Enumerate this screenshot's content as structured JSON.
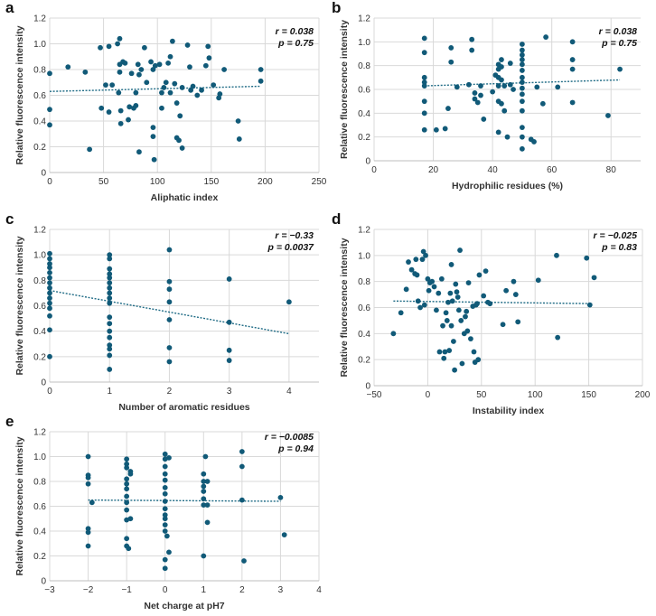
{
  "chart_data": [
    {
      "panel": "a",
      "type": "scatter",
      "xlabel": "Aliphatic index",
      "ylabel": "Relative fluorescence intensity",
      "xlim": [
        0,
        250
      ],
      "ylim": [
        0,
        1.2
      ],
      "xticks": [
        "0",
        "50",
        "100",
        "150",
        "200",
        "250"
      ],
      "yticks": [
        "0",
        "0.2",
        "0.4",
        "0.6",
        "0.8",
        "1.0",
        "1.2"
      ],
      "grid": true,
      "trend": {
        "x": [
          0,
          195
        ],
        "y": [
          0.63,
          0.67
        ]
      },
      "stats": {
        "r": "r = 0.038",
        "p": "p = 0.75"
      },
      "points": [
        [
          0,
          0.77
        ],
        [
          0,
          0.49
        ],
        [
          0,
          0.37
        ],
        [
          17,
          0.82
        ],
        [
          33,
          0.78
        ],
        [
          37,
          0.18
        ],
        [
          47,
          0.97
        ],
        [
          48,
          0.5
        ],
        [
          52,
          0.68
        ],
        [
          55,
          0.98
        ],
        [
          55,
          0.47
        ],
        [
          58,
          0.68
        ],
        [
          63,
          1.0
        ],
        [
          64,
          0.62
        ],
        [
          65,
          1.04
        ],
        [
          65,
          0.84
        ],
        [
          65,
          0.78
        ],
        [
          66,
          0.48
        ],
        [
          66,
          0.38
        ],
        [
          68,
          0.86
        ],
        [
          70,
          0.85
        ],
        [
          73,
          0.41
        ],
        [
          74,
          0.51
        ],
        [
          76,
          0.77
        ],
        [
          78,
          0.5
        ],
        [
          80,
          0.62
        ],
        [
          80,
          0.52
        ],
        [
          82,
          0.84
        ],
        [
          83,
          0.16
        ],
        [
          83,
          0.76
        ],
        [
          85,
          0.8
        ],
        [
          88,
          0.97
        ],
        [
          90,
          0.7
        ],
        [
          94,
          0.86
        ],
        [
          96,
          0.8
        ],
        [
          96,
          0.35
        ],
        [
          96,
          0.28
        ],
        [
          97,
          0.1
        ],
        [
          98,
          0.83
        ],
        [
          102,
          0.84
        ],
        [
          104,
          0.62
        ],
        [
          104,
          0.5
        ],
        [
          106,
          0.66
        ],
        [
          108,
          0.7
        ],
        [
          110,
          0.85
        ],
        [
          112,
          0.9
        ],
        [
          112,
          0.62
        ],
        [
          114,
          1.02
        ],
        [
          116,
          0.69
        ],
        [
          118,
          0.54
        ],
        [
          118,
          0.27
        ],
        [
          120,
          0.25
        ],
        [
          121,
          0.44
        ],
        [
          123,
          0.66
        ],
        [
          123,
          0.19
        ],
        [
          128,
          0.99
        ],
        [
          130,
          0.82
        ],
        [
          131,
          0.64
        ],
        [
          133,
          0.67
        ],
        [
          137,
          0.6
        ],
        [
          141,
          0.64
        ],
        [
          145,
          0.83
        ],
        [
          147,
          0.98
        ],
        [
          148,
          0.89
        ],
        [
          152,
          0.68
        ],
        [
          157,
          0.58
        ],
        [
          158,
          0.61
        ],
        [
          162,
          0.8
        ],
        [
          175,
          0.4
        ],
        [
          176,
          0.26
        ],
        [
          196,
          0.8
        ],
        [
          196,
          0.71
        ]
      ]
    },
    {
      "panel": "b",
      "type": "scatter",
      "xlabel": "Hydrophilic residues (%)",
      "ylabel": "Relative fluorescence intensity",
      "xlim": [
        0,
        90
      ],
      "ylim": [
        0,
        1.2
      ],
      "xticks": [
        "0",
        "20",
        "40",
        "60",
        "80"
      ],
      "yticks": [
        "0",
        "0.2",
        "0.4",
        "0.6",
        "0.8",
        "1.0",
        "1.2"
      ],
      "grid": true,
      "trend": {
        "x": [
          17,
          83
        ],
        "y": [
          0.63,
          0.68
        ]
      },
      "stats": {
        "r": "r = 0.038",
        "p": "p = 0.75"
      },
      "points": [
        [
          17,
          1.03
        ],
        [
          17,
          0.91
        ],
        [
          17,
          0.7
        ],
        [
          17,
          0.66
        ],
        [
          17,
          0.63
        ],
        [
          17,
          0.5
        ],
        [
          17,
          0.4
        ],
        [
          17,
          0.26
        ],
        [
          21,
          0.26
        ],
        [
          24,
          0.27
        ],
        [
          25,
          0.44
        ],
        [
          26,
          0.95
        ],
        [
          26,
          0.83
        ],
        [
          28,
          0.62
        ],
        [
          32,
          0.64
        ],
        [
          33,
          1.02
        ],
        [
          33,
          0.93
        ],
        [
          34,
          0.57
        ],
        [
          34,
          0.52
        ],
        [
          35,
          0.49
        ],
        [
          36,
          0.63
        ],
        [
          36,
          0.55
        ],
        [
          37,
          0.35
        ],
        [
          40,
          0.58
        ],
        [
          41,
          0.72
        ],
        [
          42,
          0.81
        ],
        [
          42,
          0.77
        ],
        [
          42,
          0.7
        ],
        [
          42,
          0.63
        ],
        [
          42,
          0.5
        ],
        [
          42,
          0.24
        ],
        [
          43,
          0.85
        ],
        [
          43,
          0.79
        ],
        [
          43,
          0.68
        ],
        [
          43,
          0.48
        ],
        [
          44,
          0.63
        ],
        [
          44,
          0.42
        ],
        [
          45,
          0.2
        ],
        [
          46,
          0.82
        ],
        [
          46,
          0.64
        ],
        [
          47,
          0.6
        ],
        [
          50,
          0.98
        ],
        [
          50,
          0.93
        ],
        [
          50,
          0.89
        ],
        [
          50,
          0.85
        ],
        [
          50,
          0.81
        ],
        [
          50,
          0.76
        ],
        [
          50,
          0.7
        ],
        [
          50,
          0.66
        ],
        [
          50,
          0.61
        ],
        [
          50,
          0.56
        ],
        [
          50,
          0.5
        ],
        [
          50,
          0.42
        ],
        [
          50,
          0.28
        ],
        [
          50,
          0.2
        ],
        [
          50,
          0.1
        ],
        [
          53,
          0.18
        ],
        [
          54,
          0.16
        ],
        [
          55,
          0.62
        ],
        [
          57,
          0.48
        ],
        [
          58,
          1.04
        ],
        [
          62,
          0.62
        ],
        [
          67,
          1.0
        ],
        [
          67,
          0.85
        ],
        [
          67,
          0.77
        ],
        [
          67,
          0.49
        ],
        [
          79,
          0.38
        ],
        [
          83,
          0.77
        ]
      ]
    },
    {
      "panel": "c",
      "type": "scatter",
      "xlabel": "Number of aromatic residues",
      "ylabel": "Relative fluorescence intensity",
      "xlim": [
        0,
        4.5
      ],
      "ylim": [
        0,
        1.2
      ],
      "xticks": [
        "0",
        "1",
        "2",
        "3",
        "4"
      ],
      "yticks": [
        "0",
        "0.2",
        "0.4",
        "0.6",
        "0.8",
        "1.0",
        "1.2"
      ],
      "grid": true,
      "trend": {
        "x": [
          0,
          4
        ],
        "y": [
          0.72,
          0.38
        ]
      },
      "stats": {
        "r": "r = −0.33",
        "p": "p = 0.0037"
      },
      "points": [
        [
          0,
          1.01
        ],
        [
          0,
          0.97
        ],
        [
          0,
          0.93
        ],
        [
          0,
          0.9
        ],
        [
          0,
          0.86
        ],
        [
          0,
          0.82
        ],
        [
          0,
          0.78
        ],
        [
          0,
          0.74
        ],
        [
          0,
          0.7
        ],
        [
          0,
          0.66
        ],
        [
          0,
          0.62
        ],
        [
          0,
          0.58
        ],
        [
          0,
          0.52
        ],
        [
          0,
          0.41
        ],
        [
          0,
          0.2
        ],
        [
          1,
          1.0
        ],
        [
          1,
          0.97
        ],
        [
          1,
          0.89
        ],
        [
          1,
          0.85
        ],
        [
          1,
          0.82
        ],
        [
          1,
          0.78
        ],
        [
          1,
          0.74
        ],
        [
          1,
          0.7
        ],
        [
          1,
          0.66
        ],
        [
          1,
          0.62
        ],
        [
          1,
          0.51
        ],
        [
          1,
          0.46
        ],
        [
          1,
          0.4
        ],
        [
          1,
          0.35
        ],
        [
          1,
          0.29
        ],
        [
          1,
          0.26
        ],
        [
          1,
          0.21
        ],
        [
          1,
          0.1
        ],
        [
          2,
          1.04
        ],
        [
          2,
          0.79
        ],
        [
          2,
          0.73
        ],
        [
          2,
          0.63
        ],
        [
          2,
          0.49
        ],
        [
          2,
          0.27
        ],
        [
          2,
          0.16
        ],
        [
          3,
          0.81
        ],
        [
          3,
          0.47
        ],
        [
          3,
          0.25
        ],
        [
          3,
          0.17
        ],
        [
          4,
          0.63
        ]
      ]
    },
    {
      "panel": "d",
      "type": "scatter",
      "xlabel": "Instability index",
      "ylabel": "Relative fluorescence intensity",
      "xlim": [
        -50,
        200
      ],
      "ylim": [
        0,
        1.2
      ],
      "xticks": [
        "−50",
        "0",
        "50",
        "100",
        "150",
        "200"
      ],
      "yticks": [
        "0",
        "0.2",
        "0.4",
        "0.6",
        "0.8",
        "1.0",
        "1.2"
      ],
      "grid": true,
      "trend": {
        "x": [
          -32,
          153
        ],
        "y": [
          0.65,
          0.63
        ]
      },
      "stats": {
        "r": "r = −0.025",
        "p": "p = 0.83"
      },
      "points": [
        [
          -32,
          0.4
        ],
        [
          -25,
          0.56
        ],
        [
          -20,
          0.74
        ],
        [
          -18,
          0.95
        ],
        [
          -15,
          0.89
        ],
        [
          -12,
          0.86
        ],
        [
          -11,
          0.97
        ],
        [
          -10,
          0.85
        ],
        [
          -9,
          0.65
        ],
        [
          -7,
          0.6
        ],
        [
          -5,
          0.97
        ],
        [
          -4,
          1.03
        ],
        [
          -3,
          0.62
        ],
        [
          -2,
          1.0
        ],
        [
          0,
          0.82
        ],
        [
          1,
          0.73
        ],
        [
          2,
          0.79
        ],
        [
          4,
          0.8
        ],
        [
          6,
          0.76
        ],
        [
          8,
          0.58
        ],
        [
          10,
          0.71
        ],
        [
          11,
          0.26
        ],
        [
          13,
          0.82
        ],
        [
          14,
          0.46
        ],
        [
          15,
          0.21
        ],
        [
          16,
          0.26
        ],
        [
          17,
          0.56
        ],
        [
          18,
          0.5
        ],
        [
          19,
          0.64
        ],
        [
          20,
          0.27
        ],
        [
          21,
          0.71
        ],
        [
          22,
          0.93
        ],
        [
          22,
          0.46
        ],
        [
          23,
          0.65
        ],
        [
          24,
          0.34
        ],
        [
          25,
          0.12
        ],
        [
          26,
          0.78
        ],
        [
          27,
          0.72
        ],
        [
          28,
          0.68
        ],
        [
          29,
          0.58
        ],
        [
          30,
          1.04
        ],
        [
          31,
          0.5
        ],
        [
          32,
          0.17
        ],
        [
          34,
          0.4
        ],
        [
          35,
          0.53
        ],
        [
          36,
          0.57
        ],
        [
          37,
          0.42
        ],
        [
          38,
          0.79
        ],
        [
          40,
          0.36
        ],
        [
          42,
          0.61
        ],
        [
          43,
          0.26
        ],
        [
          44,
          0.18
        ],
        [
          45,
          0.62
        ],
        [
          46,
          0.63
        ],
        [
          47,
          0.2
        ],
        [
          48,
          0.85
        ],
        [
          52,
          0.69
        ],
        [
          54,
          0.88
        ],
        [
          56,
          0.64
        ],
        [
          58,
          0.63
        ],
        [
          70,
          0.47
        ],
        [
          73,
          0.73
        ],
        [
          80,
          0.8
        ],
        [
          82,
          0.7
        ],
        [
          84,
          0.49
        ],
        [
          103,
          0.81
        ],
        [
          120,
          1.0
        ],
        [
          121,
          0.37
        ],
        [
          148,
          0.98
        ],
        [
          151,
          0.62
        ],
        [
          155,
          0.83
        ]
      ]
    },
    {
      "panel": "e",
      "type": "scatter",
      "xlabel": "Net charge at pH7",
      "ylabel": "Relative fluorescence intensity",
      "xlim": [
        -3,
        4
      ],
      "ylim": [
        0,
        1.2
      ],
      "xticks": [
        "−3",
        "−2",
        "−1",
        "0",
        "1",
        "2",
        "3",
        "4"
      ],
      "yticks": [
        "0",
        "0.2",
        "0.4",
        "0.6",
        "0.8",
        "1.0",
        "1.2"
      ],
      "grid": true,
      "trend": {
        "x": [
          -2,
          3
        ],
        "y": [
          0.65,
          0.64
        ]
      },
      "stats": {
        "r": "r = −0.0085",
        "p": "p = 0.94"
      },
      "points": [
        [
          -2,
          1.0
        ],
        [
          -2,
          0.85
        ],
        [
          -2,
          0.83
        ],
        [
          -2,
          0.78
        ],
        [
          -2,
          0.42
        ],
        [
          -2,
          0.39
        ],
        [
          -2,
          0.28
        ],
        [
          -1.9,
          0.63
        ],
        [
          -1,
          0.98
        ],
        [
          -1,
          0.94
        ],
        [
          -1,
          0.91
        ],
        [
          -1,
          0.82
        ],
        [
          -1,
          0.78
        ],
        [
          -1,
          0.74
        ],
        [
          -1,
          0.68
        ],
        [
          -1,
          0.63
        ],
        [
          -1,
          0.57
        ],
        [
          -1,
          0.49
        ],
        [
          -1,
          0.34
        ],
        [
          -1,
          0.28
        ],
        [
          -0.95,
          0.26
        ],
        [
          -0.9,
          0.88
        ],
        [
          -0.9,
          0.86
        ],
        [
          -0.9,
          0.5
        ],
        [
          0,
          1.02
        ],
        [
          0,
          0.98
        ],
        [
          0,
          0.92
        ],
        [
          0,
          0.86
        ],
        [
          0,
          0.81
        ],
        [
          0,
          0.75
        ],
        [
          0,
          0.7
        ],
        [
          0,
          0.64
        ],
        [
          0,
          0.58
        ],
        [
          0,
          0.53
        ],
        [
          0,
          0.5
        ],
        [
          0,
          0.45
        ],
        [
          0,
          0.4
        ],
        [
          0,
          0.17
        ],
        [
          0,
          0.1
        ],
        [
          0.05,
          0.36
        ],
        [
          0.1,
          0.23
        ],
        [
          0.1,
          0.99
        ],
        [
          1,
          0.86
        ],
        [
          1,
          0.8
        ],
        [
          1,
          0.76
        ],
        [
          1,
          0.72
        ],
        [
          1,
          0.66
        ],
        [
          1,
          0.61
        ],
        [
          1,
          0.2
        ],
        [
          1.05,
          1.0
        ],
        [
          1.1,
          0.8
        ],
        [
          1.1,
          0.47
        ],
        [
          1.1,
          0.61
        ],
        [
          2,
          1.04
        ],
        [
          2,
          0.92
        ],
        [
          2,
          0.65
        ],
        [
          2.05,
          0.16
        ],
        [
          3,
          0.67
        ],
        [
          3.1,
          0.37
        ]
      ]
    }
  ]
}
